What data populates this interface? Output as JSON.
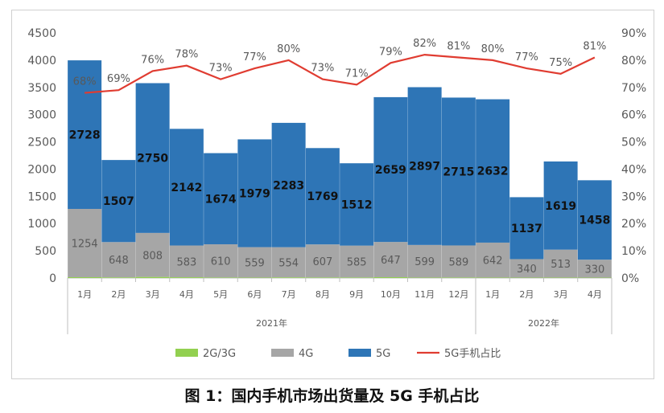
{
  "caption": "图 1：国内手机市场出货量及 5G 手机占比",
  "chart_data": {
    "type": "bar",
    "stacked": true,
    "categories": [
      "1月",
      "2月",
      "3月",
      "4月",
      "5月",
      "6月",
      "7月",
      "8月",
      "9月",
      "10月",
      "11月",
      "12月",
      "1月",
      "2月",
      "3月",
      "4月"
    ],
    "year_groups": [
      {
        "label": "2021年",
        "start": 0,
        "end": 11
      },
      {
        "label": "2022年",
        "start": 12,
        "end": 15
      }
    ],
    "series": [
      {
        "name": "2G/3G",
        "kind": "bar",
        "color": "#92d050",
        "values": [
          15,
          12,
          20,
          14,
          9,
          8,
          12,
          10,
          10,
          15,
          8,
          9,
          8,
          7,
          8,
          7
        ]
      },
      {
        "name": "4G",
        "kind": "bar",
        "color": "#a6a6a6",
        "values": [
          1254,
          648,
          808,
          583,
          610,
          559,
          554,
          607,
          585,
          647,
          599,
          589,
          642,
          340,
          513,
          330
        ]
      },
      {
        "name": "5G",
        "kind": "bar",
        "color": "#2e75b6",
        "values": [
          2728,
          1507,
          2750,
          2142,
          1674,
          1979,
          2283,
          1769,
          1512,
          2659,
          2897,
          2715,
          2632,
          1137,
          1619,
          1458
        ]
      },
      {
        "name": "5G手机占比",
        "kind": "line",
        "axis": "right",
        "color": "#e03c31",
        "values": [
          68,
          69,
          76,
          78,
          73,
          77,
          80,
          73,
          71,
          79,
          82,
          81,
          80,
          77,
          75,
          81
        ]
      }
    ],
    "labels_5g": [
      "2728",
      "1507",
      "2750",
      "2142",
      "1674",
      "1979",
      "2283",
      "1769",
      "1512",
      "2659",
      "2897",
      "2715",
      "2632",
      "1137",
      "1619",
      "1458"
    ],
    "labels_4g": [
      "1254",
      "648",
      "808",
      "583",
      "610",
      "559",
      "554",
      "607",
      "585",
      "647",
      "599",
      "589",
      "642",
      "340",
      "513",
      "330"
    ],
    "labels_pct": [
      "68%",
      "69%",
      "76%",
      "78%",
      "73%",
      "77%",
      "80%",
      "73%",
      "71%",
      "79%",
      "82%",
      "81%",
      "80%",
      "77%",
      "75%",
      "81%"
    ],
    "y_left": {
      "min": 0,
      "max": 4500,
      "step": 500,
      "ticks": [
        "0",
        "500",
        "1000",
        "1500",
        "2000",
        "2500",
        "3000",
        "3500",
        "4000",
        "4500"
      ]
    },
    "y_right": {
      "min": 0,
      "max": 90,
      "step": 10,
      "ticks": [
        "0%",
        "10%",
        "20%",
        "30%",
        "40%",
        "50%",
        "60%",
        "70%",
        "80%",
        "90%"
      ]
    },
    "legend_position": "bottom",
    "grid": false
  }
}
